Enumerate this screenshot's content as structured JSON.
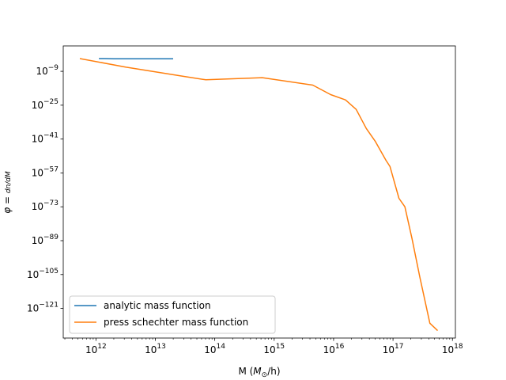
{
  "chart_data": {
    "type": "line",
    "title": "",
    "xlabel": "M (M_⊙/h)",
    "ylabel": "φ = dn/dM",
    "x_scale": "log",
    "y_scale": "log",
    "xlim_exp": [
      11.45,
      18.05
    ],
    "ylim_exp": [
      -135.0,
      3.0
    ],
    "x_ticks_exp": [
      12,
      13,
      14,
      15,
      16,
      17,
      18
    ],
    "y_ticks_exp": [
      -9,
      -25,
      -41,
      -57,
      -73,
      -89,
      -105,
      -121
    ],
    "grid": false,
    "legend_position": "lower-left",
    "series": [
      {
        "name": "analytic mass function",
        "color": "#1f77b4",
        "log10_x": [
          12.05,
          12.15,
          12.3,
          12.6,
          13.0,
          13.3
        ],
        "log10_y": [
          -3.0,
          -3.0,
          -3.1,
          -3.1,
          -3.1,
          -3.1
        ]
      },
      {
        "name": "press schechter mass function",
        "color": "#ff7f0e",
        "log10_x": [
          11.73,
          12.5,
          13.5,
          13.85,
          14.8,
          15.65,
          15.95,
          16.2,
          16.38,
          16.55,
          16.7,
          16.88,
          16.95,
          17.1,
          17.2,
          17.32,
          17.45,
          17.62,
          17.75
        ],
        "log10_y": [
          -3.0,
          -7.0,
          -11.5,
          -13.0,
          -12.0,
          -15.5,
          -20.0,
          -22.5,
          -27.0,
          -36.0,
          -42.0,
          -51.0,
          -54.0,
          -69.0,
          -73.0,
          -88.0,
          -106.0,
          -128.0,
          -131.5
        ]
      }
    ]
  }
}
